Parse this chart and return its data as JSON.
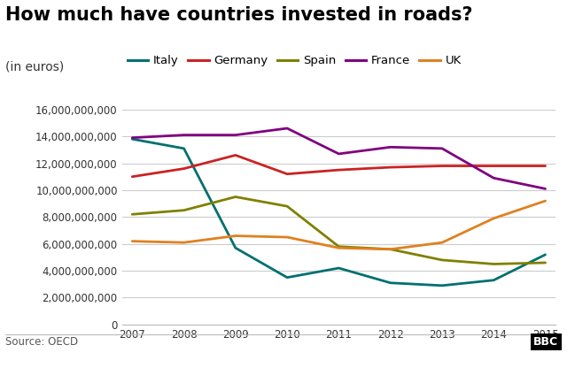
{
  "title": "How much have countries invested in roads?",
  "subtitle": "(in euros)",
  "source": "Source: OECD",
  "years": [
    2007,
    2008,
    2009,
    2010,
    2011,
    2012,
    2013,
    2014,
    2015
  ],
  "series": {
    "Italy": [
      13800000000,
      13100000000,
      5700000000,
      3500000000,
      4200000000,
      3100000000,
      2900000000,
      3300000000,
      5200000000
    ],
    "Germany": [
      11000000000,
      11600000000,
      12600000000,
      11200000000,
      11500000000,
      11700000000,
      11800000000,
      11800000000,
      11800000000
    ],
    "Spain": [
      8200000000,
      8500000000,
      9500000000,
      8800000000,
      5800000000,
      5600000000,
      4800000000,
      4500000000,
      4600000000
    ],
    "France": [
      13900000000,
      14100000000,
      14100000000,
      14600000000,
      12700000000,
      13200000000,
      13100000000,
      10900000000,
      10100000000
    ],
    "UK": [
      6200000000,
      6100000000,
      6600000000,
      6500000000,
      5700000000,
      5600000000,
      6100000000,
      7900000000,
      9200000000
    ]
  },
  "colors": {
    "Italy": "#007070",
    "Germany": "#cc2222",
    "Spain": "#808000",
    "France": "#800080",
    "UK": "#e08020"
  },
  "legend_order": [
    "Italy",
    "Germany",
    "Spain",
    "France",
    "UK"
  ],
  "ylim": [
    0,
    16000000000
  ],
  "ytick_step": 2000000000,
  "background_color": "#ffffff",
  "plot_bg_color": "#ffffff",
  "title_fontsize": 15,
  "subtitle_fontsize": 10,
  "legend_fontsize": 9.5,
  "axis_fontsize": 8.5,
  "source_fontsize": 8.5,
  "line_width": 2.0
}
